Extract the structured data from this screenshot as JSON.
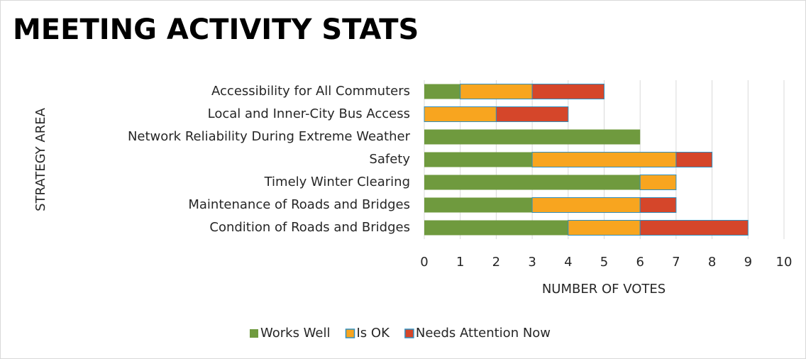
{
  "chart_data": {
    "type": "bar",
    "orientation": "horizontal",
    "stacked": true,
    "title": "MEETING ACTIVITY STATS",
    "y_label": "STRATEGY AREA",
    "x_label": "NUMBER OF VOTES",
    "categories": [
      "Accessibility for All Commuters",
      "Local and Inner-City Bus Access",
      "Network Reliability During Extreme Weather",
      "Safety",
      "Timely Winter Clearing",
      "Maintenance of Roads and Bridges",
      "Condition of Roads and Bridges"
    ],
    "series": [
      {
        "name": "Works Well",
        "color": "#6f9a3e",
        "values": [
          1,
          0,
          6,
          3,
          6,
          3,
          4
        ]
      },
      {
        "name": "Is OK",
        "color": "#f8a51f",
        "edgecolor": "#2f8fbf",
        "values": [
          2,
          2,
          0,
          4,
          1,
          3,
          2
        ]
      },
      {
        "name": "Needs Attention Now",
        "color": "#d5462a",
        "edgecolor": "#2f8fbf",
        "values": [
          2,
          2,
          0,
          1,
          0,
          1,
          3
        ]
      }
    ],
    "xlim": [
      0,
      10
    ],
    "xticks": [
      0,
      1,
      2,
      3,
      4,
      5,
      6,
      7,
      8,
      9,
      10
    ],
    "grid": true,
    "legend": "bottom"
  }
}
